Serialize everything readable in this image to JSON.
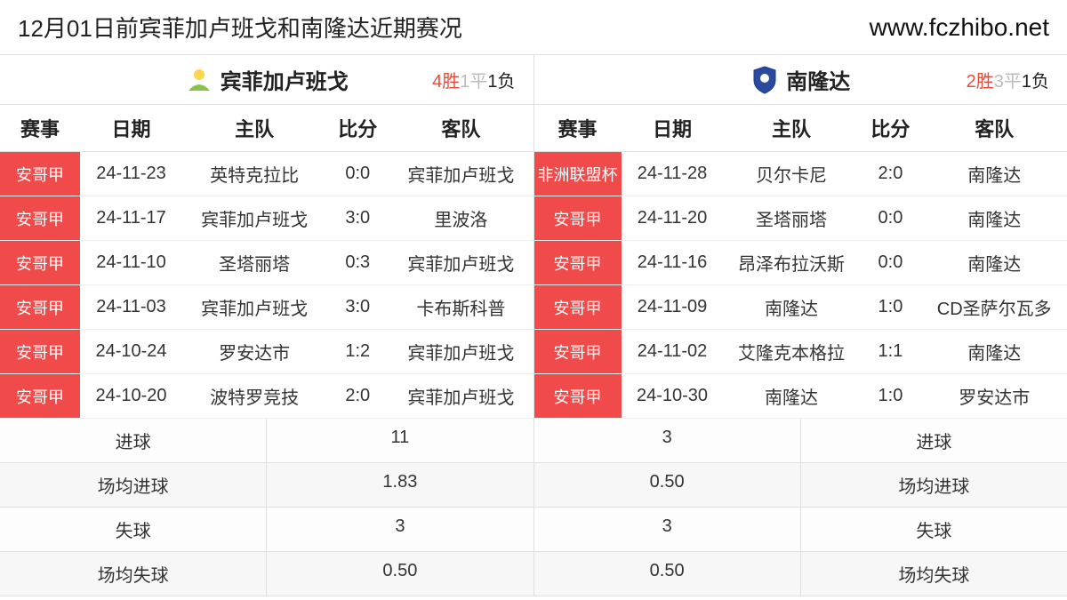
{
  "header": {
    "title": "12月01日前宾菲加卢班戈和南隆达近期赛况",
    "url": "www.fczhibo.net"
  },
  "teams": {
    "left": {
      "name": "宾菲加卢班戈",
      "logo_color": "#8bc34a",
      "record": {
        "wins": "4胜",
        "draws": "1平",
        "losses": "1负"
      }
    },
    "right": {
      "name": "南隆达",
      "logo_color": "#2a4a9e",
      "record": {
        "wins": "2胜",
        "draws": "3平",
        "losses": "1负"
      }
    }
  },
  "columns": {
    "comp": "赛事",
    "date": "日期",
    "home": "主队",
    "score": "比分",
    "away": "客队"
  },
  "left_matches": [
    {
      "comp": "安哥甲",
      "date": "24-11-23",
      "home": "英特克拉比",
      "score": "0:0",
      "away": "宾菲加卢班戈"
    },
    {
      "comp": "安哥甲",
      "date": "24-11-17",
      "home": "宾菲加卢班戈",
      "score": "3:0",
      "away": "里波洛"
    },
    {
      "comp": "安哥甲",
      "date": "24-11-10",
      "home": "圣塔丽塔",
      "score": "0:3",
      "away": "宾菲加卢班戈"
    },
    {
      "comp": "安哥甲",
      "date": "24-11-03",
      "home": "宾菲加卢班戈",
      "score": "3:0",
      "away": "卡布斯科普"
    },
    {
      "comp": "安哥甲",
      "date": "24-10-24",
      "home": "罗安达市",
      "score": "1:2",
      "away": "宾菲加卢班戈"
    },
    {
      "comp": "安哥甲",
      "date": "24-10-20",
      "home": "波特罗竞技",
      "score": "2:0",
      "away": "宾菲加卢班戈"
    }
  ],
  "right_matches": [
    {
      "comp": "非洲联盟杯",
      "date": "24-11-28",
      "home": "贝尔卡尼",
      "score": "2:0",
      "away": "南隆达"
    },
    {
      "comp": "安哥甲",
      "date": "24-11-20",
      "home": "圣塔丽塔",
      "score": "0:0",
      "away": "南隆达"
    },
    {
      "comp": "安哥甲",
      "date": "24-11-16",
      "home": "昂泽布拉沃斯",
      "score": "0:0",
      "away": "南隆达"
    },
    {
      "comp": "安哥甲",
      "date": "24-11-09",
      "home": "南隆达",
      "score": "1:0",
      "away": "CD圣萨尔瓦多"
    },
    {
      "comp": "安哥甲",
      "date": "24-11-02",
      "home": "艾隆克本格拉",
      "score": "1:1",
      "away": "南隆达"
    },
    {
      "comp": "安哥甲",
      "date": "24-10-30",
      "home": "南隆达",
      "score": "1:0",
      "away": "罗安达市"
    }
  ],
  "stats": {
    "labels": {
      "goals": "进球",
      "avg_goals": "场均进球",
      "conceded": "失球",
      "avg_conceded": "场均失球"
    },
    "left": {
      "goals": "11",
      "avg_goals": "1.83",
      "conceded": "3",
      "avg_conceded": "0.50"
    },
    "right": {
      "goals": "3",
      "avg_goals": "0.50",
      "conceded": "3",
      "avg_conceded": "0.50"
    }
  },
  "colors": {
    "comp_bg": "#f04a4a",
    "wins_color": "#e74c3c",
    "draws_color": "#bbbbbb",
    "border": "#e0e0e0"
  }
}
